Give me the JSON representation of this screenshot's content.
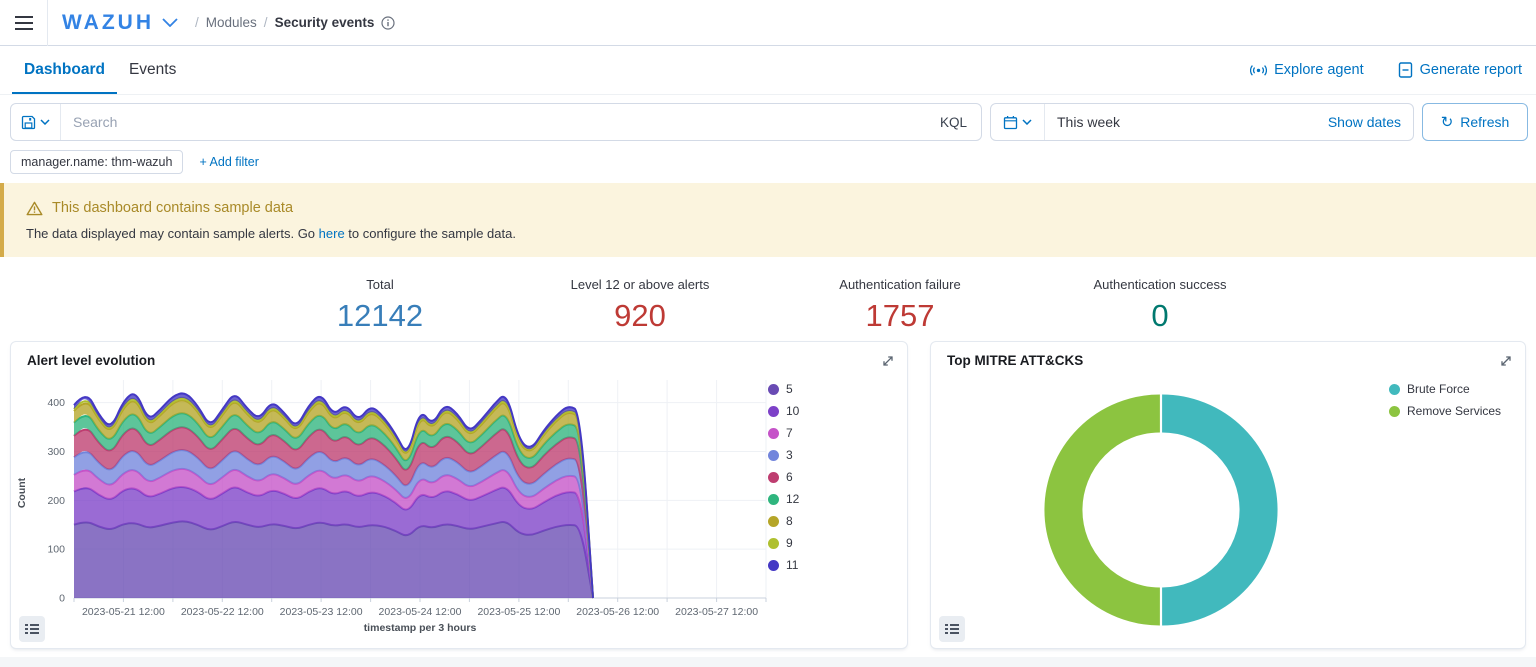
{
  "header": {
    "logo": "WAZUH",
    "breadcrumb": {
      "sep": "/",
      "modules": "Modules",
      "current": "Security events"
    }
  },
  "tabs": {
    "dashboard": "Dashboard",
    "events": "Events"
  },
  "actions": {
    "explore_agent": "Explore agent",
    "generate_report": "Generate report"
  },
  "search": {
    "placeholder": "Search",
    "kql": "KQL"
  },
  "datepicker": {
    "value": "This week",
    "show_dates": "Show dates",
    "refresh": "Refresh",
    "refresh_glyph": "↻"
  },
  "filters": {
    "pill": "manager.name: thm-wazuh",
    "add": "+ Add filter"
  },
  "banner": {
    "title": "This dashboard contains sample data",
    "body_prefix": "The data displayed may contain sample alerts. Go ",
    "link": "here",
    "body_suffix": " to configure the sample data."
  },
  "stats": [
    {
      "label": "Total",
      "value": "12142",
      "color": "#387EB9"
    },
    {
      "label": "Level 12 or above alerts",
      "value": "920",
      "color": "#BE3A35"
    },
    {
      "label": "Authentication failure",
      "value": "1757",
      "color": "#BE3A35"
    },
    {
      "label": "Authentication success",
      "value": "0",
      "color": "#00796F"
    }
  ],
  "chart_data": [
    {
      "type": "area",
      "stacked": true,
      "title": "Alert level evolution",
      "xlabel": "timestamp per 3 hours",
      "ylabel": "Count",
      "ylim": [
        0,
        430
      ],
      "yticks": [
        0,
        100,
        200,
        300,
        400
      ],
      "grid": true,
      "legend_position": "right",
      "x_start": "2023-05-21 00:00",
      "x_interval_hours": 3,
      "x_total_hours": 168,
      "xticks": [
        "2023-05-21 12:00",
        "2023-05-22 12:00",
        "2023-05-23 12:00",
        "2023-05-24 12:00",
        "2023-05-25 12:00",
        "2023-05-26 12:00",
        "2023-05-27 12:00"
      ],
      "xtick_hours": [
        12,
        36,
        60,
        84,
        108,
        132,
        156
      ],
      "series": [
        {
          "name": "5",
          "color": "#694BB4",
          "values": [
            150,
            158,
            146,
            139,
            152,
            154,
            143,
            148,
            155,
            158,
            150,
            138,
            147,
            158,
            150,
            144,
            152,
            148,
            141,
            150,
            156,
            147,
            152,
            144,
            150,
            147,
            138,
            124,
            150,
            143,
            152,
            148,
            140,
            146,
            152,
            158,
            132,
            128,
            138,
            146,
            150,
            148,
            0,
            0,
            0,
            0,
            0,
            0,
            0,
            0,
            0,
            0,
            0,
            0,
            0,
            0
          ]
        },
        {
          "name": "10",
          "color": "#7D41C8",
          "values": [
            68,
            72,
            65,
            60,
            70,
            72,
            62,
            66,
            71,
            70,
            68,
            61,
            67,
            72,
            66,
            63,
            70,
            66,
            60,
            68,
            72,
            64,
            69,
            62,
            68,
            64,
            58,
            50,
            66,
            60,
            69,
            65,
            58,
            62,
            68,
            72,
            56,
            52,
            58,
            64,
            68,
            66,
            0,
            0,
            0,
            0,
            0,
            0,
            0,
            0,
            0,
            0,
            0,
            0,
            0,
            0
          ]
        },
        {
          "name": "7",
          "color": "#C553C8",
          "values": [
            34,
            38,
            32,
            28,
            35,
            39,
            30,
            33,
            36,
            38,
            34,
            29,
            33,
            37,
            33,
            30,
            35,
            32,
            28,
            34,
            37,
            31,
            34,
            30,
            34,
            31,
            27,
            22,
            33,
            29,
            34,
            32,
            27,
            30,
            34,
            37,
            26,
            24,
            28,
            31,
            34,
            32,
            0,
            0,
            0,
            0,
            0,
            0,
            0,
            0,
            0,
            0,
            0,
            0,
            0,
            0
          ]
        },
        {
          "name": "3",
          "color": "#7285DC",
          "values": [
            36,
            39,
            33,
            30,
            37,
            40,
            32,
            35,
            38,
            39,
            36,
            31,
            35,
            39,
            35,
            32,
            37,
            34,
            30,
            36,
            39,
            33,
            36,
            32,
            36,
            33,
            29,
            24,
            35,
            31,
            36,
            34,
            29,
            32,
            36,
            39,
            28,
            26,
            30,
            33,
            36,
            34,
            0,
            0,
            0,
            0,
            0,
            0,
            0,
            0,
            0,
            0,
            0,
            0,
            0,
            0
          ]
        },
        {
          "name": "6",
          "color": "#BE3D70",
          "values": [
            44,
            48,
            41,
            38,
            45,
            47,
            40,
            43,
            46,
            47,
            44,
            39,
            43,
            47,
            43,
            40,
            45,
            42,
            38,
            44,
            47,
            41,
            44,
            40,
            44,
            41,
            36,
            30,
            43,
            39,
            44,
            42,
            36,
            40,
            44,
            47,
            35,
            32,
            38,
            41,
            44,
            42,
            0,
            0,
            0,
            0,
            0,
            0,
            0,
            0,
            0,
            0,
            0,
            0,
            0,
            0
          ]
        },
        {
          "name": "12",
          "color": "#2FB57E",
          "values": [
            27,
            29,
            25,
            23,
            27,
            30,
            24,
            26,
            28,
            29,
            27,
            23,
            26,
            29,
            26,
            24,
            27,
            25,
            23,
            27,
            29,
            25,
            27,
            24,
            27,
            25,
            22,
            18,
            26,
            23,
            27,
            25,
            22,
            24,
            27,
            29,
            21,
            19,
            23,
            25,
            27,
            26,
            0,
            0,
            0,
            0,
            0,
            0,
            0,
            0,
            0,
            0,
            0,
            0,
            0,
            0
          ]
        },
        {
          "name": "8",
          "color": "#B5A528",
          "values": [
            24,
            27,
            22,
            19,
            25,
            28,
            21,
            23,
            26,
            27,
            24,
            20,
            23,
            26,
            23,
            21,
            25,
            22,
            19,
            24,
            26,
            21,
            24,
            20,
            24,
            21,
            18,
            14,
            23,
            19,
            24,
            22,
            18,
            21,
            24,
            26,
            17,
            15,
            19,
            22,
            24,
            22,
            0,
            0,
            0,
            0,
            0,
            0,
            0,
            0,
            0,
            0,
            0,
            0,
            0,
            0
          ]
        },
        {
          "name": "9",
          "color": "#AFC02F",
          "values": [
            4,
            5,
            4,
            3,
            5,
            5,
            4,
            4,
            5,
            5,
            4,
            3,
            4,
            5,
            4,
            4,
            5,
            4,
            3,
            4,
            5,
            4,
            4,
            3,
            4,
            4,
            3,
            2,
            4,
            3,
            4,
            4,
            3,
            4,
            4,
            5,
            3,
            2,
            3,
            4,
            4,
            4,
            0,
            0,
            0,
            0,
            0,
            0,
            0,
            0,
            0,
            0,
            0,
            0,
            0,
            0
          ]
        },
        {
          "name": "11",
          "color": "#4438C4",
          "values": [
            8,
            9,
            7,
            6,
            8,
            10,
            7,
            8,
            9,
            9,
            8,
            6,
            8,
            9,
            8,
            7,
            8,
            7,
            6,
            8,
            9,
            7,
            8,
            7,
            8,
            7,
            6,
            5,
            8,
            6,
            8,
            7,
            6,
            7,
            8,
            9,
            5,
            5,
            6,
            7,
            8,
            7,
            0,
            0,
            0,
            0,
            0,
            0,
            0,
            0,
            0,
            0,
            0,
            0,
            0,
            0
          ]
        }
      ]
    },
    {
      "type": "donut",
      "title": "Top MITRE ATT&CKS",
      "legend_position": "right",
      "slices": [
        {
          "label": "Brute Force",
          "value": 50,
          "color": "#41B9BD"
        },
        {
          "label": "Remove Services",
          "value": 50,
          "color": "#8CC440"
        }
      ]
    }
  ]
}
